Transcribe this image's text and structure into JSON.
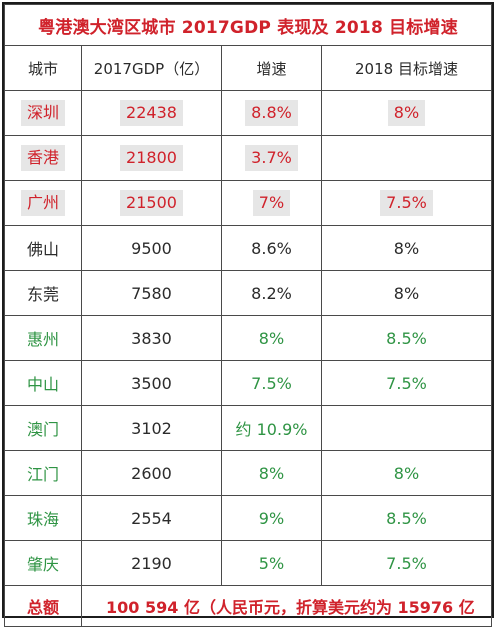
{
  "title": "粤港澳大湾区城市 2017GDP 表现及 2018 目标增速",
  "headers": {
    "city": "城市",
    "gdp": "2017GDP（亿）",
    "rate": "增速",
    "target": "2018 目标增速"
  },
  "rows": [
    {
      "city": "深圳",
      "gdp": "22438",
      "rate": "8.8%",
      "target": "8%"
    },
    {
      "city": "香港",
      "gdp": "21800",
      "rate": "3.7%",
      "target": ""
    },
    {
      "city": "广州",
      "gdp": "21500",
      "rate": "7%",
      "target": "7.5%"
    },
    {
      "city": "佛山",
      "gdp": "9500",
      "rate": "8.6%",
      "target": "8%"
    },
    {
      "city": "东莞",
      "gdp": "7580",
      "rate": "8.2%",
      "target": "8%"
    },
    {
      "city": "惠州",
      "gdp": "3830",
      "rate": "8%",
      "target": "8.5%"
    },
    {
      "city": "中山",
      "gdp": "3500",
      "rate": "7.5%",
      "target": "7.5%"
    },
    {
      "city": "澳门",
      "gdp": "3102",
      "rate": "约 10.9%",
      "target": ""
    },
    {
      "city": "江门",
      "gdp": "2600",
      "rate": "8%",
      "target": "8%"
    },
    {
      "city": "珠海",
      "gdp": "2554",
      "rate": "9%",
      "target": "8.5%"
    },
    {
      "city": "肇庆",
      "gdp": "2190",
      "rate": "5%",
      "target": "7.5%"
    }
  ],
  "total": {
    "label": "总额",
    "value": "100 594 亿（人民币元，折算美元约为 15976 亿"
  },
  "colors": {
    "red": "#d0222b",
    "black": "#2b2b2b",
    "green": "#2f9444",
    "highlight": "#e6e6e6"
  }
}
